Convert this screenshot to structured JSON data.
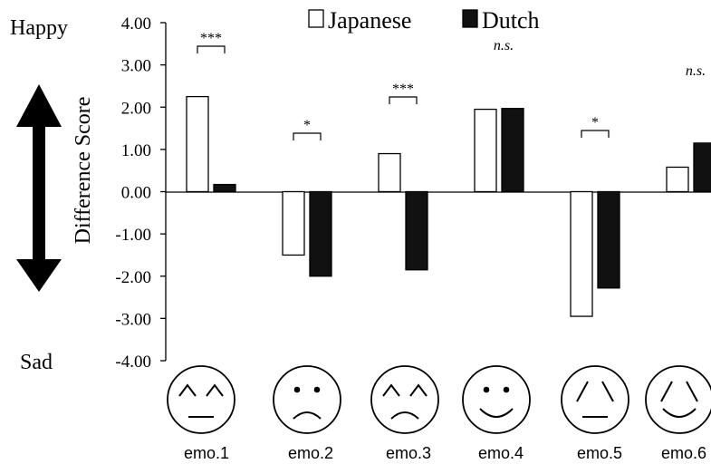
{
  "chart_data": {
    "type": "bar",
    "ylabel": "Difference Score",
    "y_top_label": "Happy",
    "y_bottom_label": "Sad",
    "ylim": [
      -4,
      4
    ],
    "yticks": [
      "4.00",
      "3.00",
      "2.00",
      "1.00",
      "0.00",
      "-1.00",
      "-2.00",
      "-3.00",
      "-4.00"
    ],
    "categories": [
      "emo.1",
      "emo.2",
      "emo.3",
      "emo.4",
      "emo.5",
      "emo.6"
    ],
    "series": [
      {
        "name": "Japanese",
        "color": "#ffffff",
        "values": [
          2.25,
          -1.5,
          0.9,
          1.95,
          -2.95,
          0.58
        ]
      },
      {
        "name": "Dutch",
        "color": "#111111",
        "values": [
          0.17,
          -2.0,
          -1.85,
          1.97,
          -2.28,
          1.15
        ]
      }
    ],
    "significance": [
      "***",
      "*",
      "***",
      "n.s.",
      "*",
      "n.s."
    ],
    "faces": [
      "happy-closed-eyes",
      "sad-dot-eyes",
      "sad-closed-eyes",
      "happy-dot-eyes",
      "neutral-sad-eyes",
      "happy-sad-eyes"
    ],
    "legend_position": "top-center",
    "grid": false
  }
}
